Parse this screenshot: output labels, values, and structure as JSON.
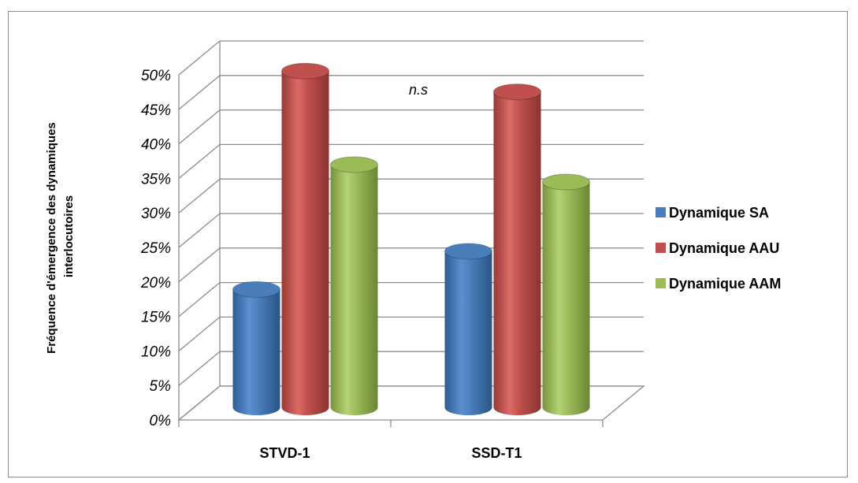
{
  "chart_data": {
    "type": "bar",
    "variant": "3d-cylinder",
    "categories": [
      "STVD-1",
      "SSD-T1"
    ],
    "series": [
      {
        "name": "Dynamique SA",
        "values": [
          17,
          22.5
        ],
        "color": "#4a7ebb"
      },
      {
        "name": "Dynamique AAU",
        "values": [
          48.5,
          45.5
        ],
        "color": "#c0504d"
      },
      {
        "name": "Dynamique AAM",
        "values": [
          35,
          32.5
        ],
        "color": "#9bbb59"
      }
    ],
    "ylabel_lines": [
      "Fréquence d'émergence des dynamiques",
      "interlocutoires"
    ],
    "ylim": [
      0,
      50
    ],
    "yticks": [
      "0%",
      "5%",
      "10%",
      "15%",
      "20%",
      "25%",
      "30%",
      "35%",
      "40%",
      "45%",
      "50%"
    ],
    "grid": true,
    "legend_position": "right",
    "annotation": "n.s"
  }
}
